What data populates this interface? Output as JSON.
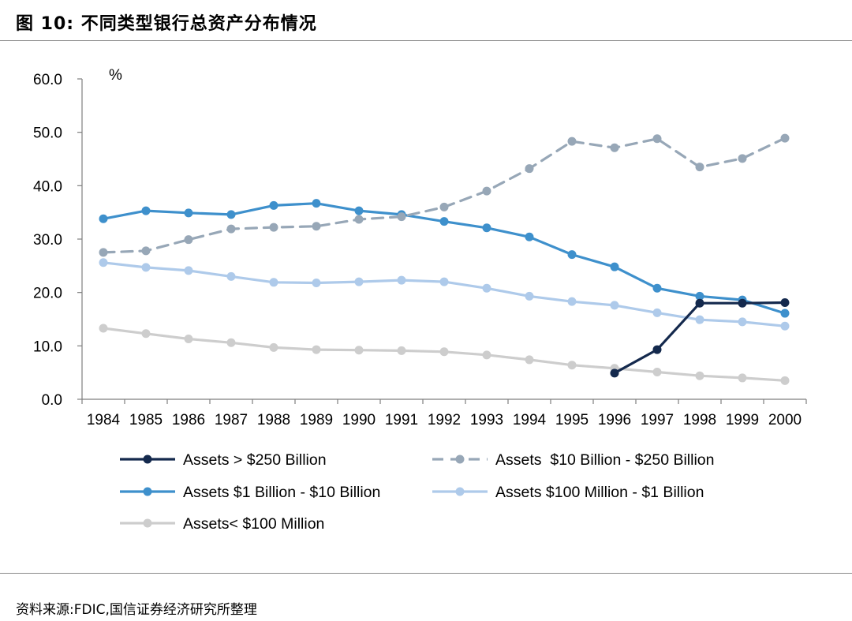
{
  "figure_title": "图 10:  不同类型银行总资产分布情况",
  "source_note": "资料来源:FDIC,国信证券经济研究所整理",
  "chart_data": {
    "type": "line",
    "title": "",
    "unit_label": "%",
    "xlabel": "",
    "ylabel": "",
    "ylim": [
      0,
      60
    ],
    "yticks": [
      0,
      10,
      20,
      30,
      40,
      50,
      60
    ],
    "ytick_labels": [
      "0.0",
      "10.0",
      "20.0",
      "30.0",
      "40.0",
      "50.0",
      "60.0"
    ],
    "grid": false,
    "legend_position": "bottom",
    "categories": [
      "1984",
      "1985",
      "1986",
      "1987",
      "1988",
      "1989",
      "1990",
      "1991",
      "1992",
      "1993",
      "1994",
      "1995",
      "1996",
      "1997",
      "1998",
      "1999",
      "2000"
    ],
    "series": [
      {
        "name": "Assets > $250 Billion",
        "color": "#14294d",
        "dashed": false,
        "values": [
          null,
          null,
          null,
          null,
          null,
          null,
          null,
          null,
          null,
          null,
          null,
          null,
          4.9,
          9.3,
          18.0,
          18.0,
          18.1
        ]
      },
      {
        "name": "Assets  $10 Billion - $250 Billion",
        "color": "#97a7b7",
        "dashed": true,
        "values": [
          27.5,
          27.8,
          29.9,
          31.9,
          32.2,
          32.4,
          33.7,
          34.2,
          36.0,
          39.0,
          43.2,
          48.3,
          47.1,
          48.8,
          43.5,
          45.1,
          48.9
        ]
      },
      {
        "name": "Assets $1 Billion - $10 Billion",
        "color": "#3e90cc",
        "dashed": false,
        "values": [
          33.8,
          35.3,
          34.9,
          34.6,
          36.3,
          36.7,
          35.3,
          34.6,
          33.3,
          32.1,
          30.4,
          27.1,
          24.8,
          20.8,
          19.3,
          18.6,
          16.1
        ]
      },
      {
        "name": "Assets $100 Million - $1 Billion",
        "color": "#aecaea",
        "dashed": false,
        "values": [
          25.6,
          24.7,
          24.1,
          23.0,
          21.9,
          21.8,
          22.0,
          22.3,
          22.0,
          20.8,
          19.3,
          18.3,
          17.6,
          16.2,
          14.9,
          14.5,
          13.7
        ]
      },
      {
        "name": "Assets< $100 Million",
        "color": "#cdcdcd",
        "dashed": false,
        "values": [
          13.3,
          12.3,
          11.3,
          10.6,
          9.7,
          9.3,
          9.2,
          9.1,
          8.9,
          8.3,
          7.4,
          6.4,
          5.8,
          5.1,
          4.4,
          4.0,
          3.5
        ]
      }
    ]
  }
}
